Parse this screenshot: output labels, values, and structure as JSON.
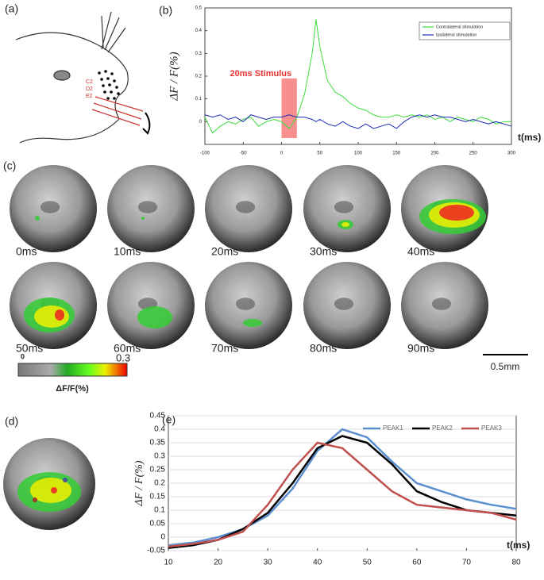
{
  "panel_labels": [
    "(a)",
    "(b)",
    "(c)",
    "(d)",
    "(e)"
  ],
  "whisker_labels": [
    "C2",
    "D2",
    "E2"
  ],
  "frames": {
    "labels": [
      "0ms",
      "10ms",
      "20ms",
      "30ms",
      "40ms",
      "50ms",
      "60ms",
      "70ms",
      "80ms",
      "90ms"
    ]
  },
  "colorbar": {
    "min_label": "0",
    "max_label": "0.3",
    "title": "ΔF/F(%)"
  },
  "scale_bar": "0.5mm",
  "chart_data": [
    {
      "type": "line",
      "y_label": "ΔF / F(%)",
      "x_label": "t(ms)",
      "annotation": "20ms Stimulus",
      "stimulus": [
        0,
        20
      ],
      "stimulus_color": "#f77b7b",
      "legend": "upper right",
      "grid": false,
      "x": [
        -100,
        -90,
        -80,
        -70,
        -60,
        -50,
        -40,
        -30,
        -20,
        -10,
        0,
        10,
        20,
        30,
        40,
        45,
        50,
        60,
        70,
        80,
        90,
        100,
        110,
        120,
        130,
        140,
        150,
        160,
        170,
        180,
        190,
        200,
        210,
        220,
        230,
        240,
        250,
        260,
        270,
        280,
        290,
        300
      ],
      "xlim": [
        -100,
        300
      ],
      "xticks": [
        -100,
        -50,
        0,
        50,
        100,
        150,
        200,
        250,
        300
      ],
      "ylim": [
        -0.1,
        0.5
      ],
      "yticks": [
        0,
        0.1,
        0.2,
        0.3,
        0.4,
        0.5
      ],
      "series": [
        {
          "name": "Contralateral stimulation",
          "color": "#3ddc3d",
          "values": [
            0.02,
            -0.05,
            -0.02,
            0.0,
            -0.01,
            0.01,
            0.02,
            -0.02,
            0.0,
            0.01,
            0.0,
            -0.03,
            0.02,
            0.12,
            0.3,
            0.45,
            0.33,
            0.18,
            0.13,
            0.11,
            0.08,
            0.06,
            0.05,
            0.03,
            0.02,
            0.02,
            0.03,
            0.02,
            0.03,
            0.02,
            0.03,
            0.01,
            0.02,
            0.0,
            0.02,
            0.01,
            0.0,
            0.02,
            0.01,
            -0.01,
            0.0,
            0.0
          ]
        },
        {
          "name": "Ipsilateral stimulation",
          "color": "#1c2db5",
          "values": [
            0.03,
            0.02,
            0.03,
            0.01,
            0.02,
            0.0,
            0.03,
            0.02,
            0.01,
            0.02,
            0.02,
            0.03,
            0.02,
            0.02,
            0.01,
            0.0,
            0.01,
            -0.01,
            -0.02,
            0.0,
            -0.02,
            -0.03,
            -0.01,
            -0.03,
            -0.02,
            -0.01,
            -0.03,
            0.0,
            0.02,
            0.03,
            0.02,
            0.03,
            0.02,
            0.02,
            0.01,
            0.0,
            0.01,
            0.0,
            -0.01,
            0.0,
            -0.01,
            -0.02
          ]
        }
      ]
    },
    {
      "type": "line",
      "y_label": "ΔF / F(%)",
      "x_label": "t(ms)",
      "legend": "upper right",
      "grid": true,
      "x": [
        10,
        15,
        20,
        25,
        30,
        35,
        40,
        45,
        50,
        55,
        60,
        65,
        70,
        75,
        80
      ],
      "xlim": [
        10,
        80
      ],
      "xticks": [
        10,
        20,
        30,
        40,
        50,
        60,
        70,
        80
      ],
      "ylim": [
        -0.05,
        0.45
      ],
      "yticks": [
        -0.05,
        0,
        0.05,
        0.1,
        0.15,
        0.2,
        0.25,
        0.3,
        0.35,
        0.4,
        0.45
      ],
      "series": [
        {
          "name": "PEAK1",
          "color": "#5b8fd0",
          "values": [
            -0.03,
            -0.02,
            0.0,
            0.03,
            0.08,
            0.18,
            0.32,
            0.4,
            0.37,
            0.28,
            0.2,
            0.17,
            0.14,
            0.12,
            0.105
          ]
        },
        {
          "name": "PEAK2",
          "color": "#000000",
          "values": [
            -0.04,
            -0.03,
            -0.01,
            0.03,
            0.09,
            0.2,
            0.33,
            0.375,
            0.35,
            0.27,
            0.17,
            0.13,
            0.1,
            0.09,
            0.08
          ]
        },
        {
          "name": "PEAK3",
          "color": "#c0504d",
          "values": [
            -0.035,
            -0.025,
            -0.01,
            0.02,
            0.12,
            0.25,
            0.35,
            0.33,
            0.25,
            0.17,
            0.12,
            0.11,
            0.1,
            0.09,
            0.065
          ]
        }
      ]
    }
  ]
}
